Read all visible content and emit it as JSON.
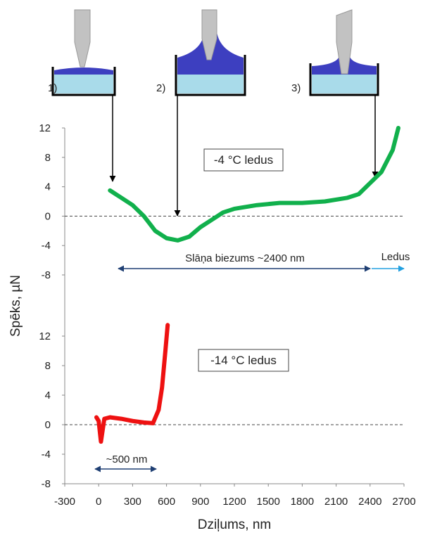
{
  "chart_data": [
    {
      "type": "line",
      "y_label": "Spēks, µN",
      "x": [
        100,
        150,
        200,
        300,
        400,
        450,
        500,
        600,
        700,
        800,
        900,
        1000,
        1100,
        1200,
        1400,
        1600,
        1800,
        2000,
        2200,
        2300,
        2400,
        2500,
        2600,
        2650
      ],
      "series": [
        {
          "color": "#11b04c",
          "values": [
            3.5,
            3,
            2.5,
            1.5,
            0,
            -1,
            -2,
            -3,
            -3.3,
            -2.8,
            -1.5,
            -0.5,
            0.5,
            1,
            1.5,
            1.8,
            1.8,
            2,
            2.5,
            3,
            4.5,
            6,
            9,
            12
          ]
        }
      ],
      "xlim": [
        -300,
        2700
      ],
      "ylim": [
        -8,
        12
      ],
      "yticks": [
        -8,
        -4,
        0,
        4,
        8,
        12
      ],
      "reference_line": 0,
      "annotations": [
        "1)",
        "2)",
        "3)",
        "-4 °C ledus",
        "Slāņa biezums ~2400 nm",
        "Ledus"
      ]
    },
    {
      "type": "line",
      "x_label": "Dziļums, nm",
      "x": [
        -20,
        0,
        20,
        50,
        100,
        200,
        300,
        400,
        480,
        530,
        560,
        590,
        610
      ],
      "series": [
        {
          "color": "#ee1111",
          "values": [
            1,
            0.5,
            -2.3,
            0.8,
            1,
            0.8,
            0.5,
            0.3,
            0.2,
            2,
            5,
            10,
            13.5
          ]
        }
      ],
      "xlim": [
        -300,
        2700
      ],
      "xticks": [
        -300,
        0,
        300,
        600,
        900,
        1200,
        1500,
        1800,
        2100,
        2400,
        2700
      ],
      "ylim": [
        -8,
        12
      ],
      "yticks": [
        -8,
        -4,
        0,
        4,
        8,
        12
      ],
      "reference_line": 0,
      "annotations": [
        "-14 °C ledus",
        "~500 nm"
      ]
    }
  ]
}
